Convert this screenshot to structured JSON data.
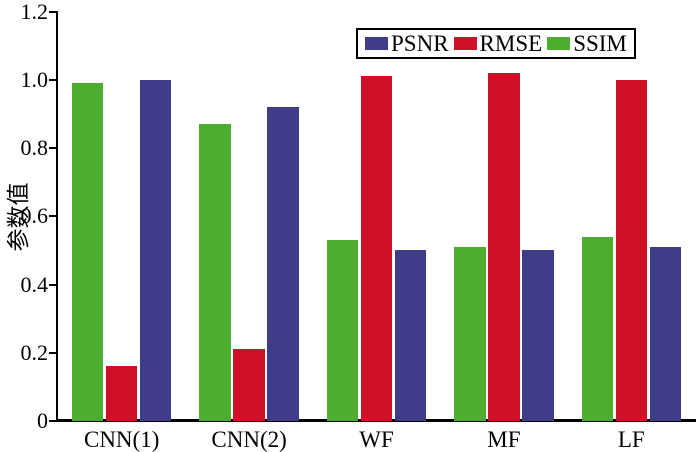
{
  "figure": {
    "background": "#ffffff",
    "axis_color": "#000000"
  },
  "chart_data": {
    "type": "bar",
    "title": "",
    "xlabel": "",
    "ylabel": "参数值",
    "categories": [
      "CNN(1)",
      "CNN(2)",
      "WF",
      "MF",
      "LF"
    ],
    "series": [
      {
        "name": "PSNR",
        "color": "#3F3D89",
        "values": [
          1.0,
          0.92,
          0.5,
          0.5,
          0.51
        ]
      },
      {
        "name": "RMSE",
        "color": "#CF1127",
        "values": [
          0.16,
          0.21,
          1.01,
          1.02,
          1.0
        ]
      },
      {
        "name": "SSIM",
        "color": "#4DAD31",
        "values": [
          0.99,
          0.87,
          0.53,
          0.51,
          0.54
        ]
      }
    ],
    "bar_draw_order": [
      "SSIM",
      "RMSE",
      "PSNR"
    ],
    "ylim": [
      0,
      1.2
    ],
    "yticks": [
      {
        "value": 0,
        "label": "0"
      },
      {
        "value": 0.2,
        "label": "0.2"
      },
      {
        "value": 0.4,
        "label": "0.4"
      },
      {
        "value": 0.6,
        "label": "0.6"
      },
      {
        "value": 0.8,
        "label": "0.8"
      },
      {
        "value": 1.0,
        "label": "1.0"
      },
      {
        "value": 1.2,
        "label": "1.2"
      }
    ],
    "legend": {
      "position": "top-right",
      "entries": [
        "PSNR",
        "RMSE",
        "SSIM"
      ]
    },
    "grid": false
  }
}
